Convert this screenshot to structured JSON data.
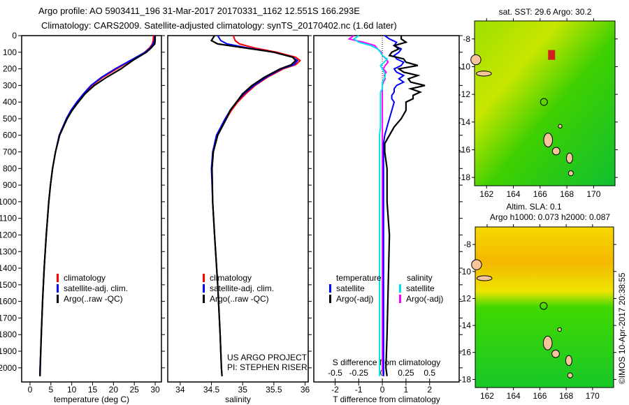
{
  "header": {
    "line1": "Argo profile: AO 5903411_196 31-Mar-2017 20170331_1162 12.551S 166.293E",
    "line2": "Climatology: CARS2009. Satellite-adjusted climatology: synTS_20170402.nc (1.6d later)"
  },
  "depth_ticks": [
    0,
    100,
    200,
    300,
    400,
    500,
    600,
    700,
    800,
    900,
    1000,
    1100,
    1200,
    1300,
    1400,
    1500,
    1600,
    1700,
    1800,
    1900,
    2000
  ],
  "colors": {
    "clim": "#ff0000",
    "sat": "#0000ff",
    "argo": "#000000",
    "sal_sat": "#00e5ee",
    "sal_argo": "#ff00ff"
  },
  "chart_data": [
    {
      "type": "line",
      "xlabel": "temperature (deg C)",
      "xlim": [
        -2,
        31.5
      ],
      "ylim": [
        2085,
        0
      ],
      "xticks": [
        0,
        5,
        10,
        15,
        20,
        25,
        30
      ],
      "legend": [
        "climatology",
        "satellite-adj. clim.",
        "Argo(..raw -QC)"
      ],
      "depth": [
        0,
        30,
        50,
        75,
        100,
        150,
        200,
        250,
        300,
        350,
        400,
        450,
        500,
        600,
        700,
        800,
        900,
        1000,
        1200,
        1400,
        1600,
        1800,
        2000,
        2050
      ],
      "series": [
        {
          "name": "climatology",
          "values": [
            29.6,
            29.5,
            29.3,
            28.6,
            27.5,
            24.2,
            20.8,
            17.5,
            14.8,
            13.0,
            11.4,
            10.0,
            8.8,
            7.1,
            6.1,
            5.4,
            4.9,
            4.5,
            3.9,
            3.4,
            3.0,
            2.7,
            2.4,
            2.35
          ]
        },
        {
          "name": "satellite-adj. clim.",
          "values": [
            29.9,
            29.8,
            29.5,
            28.8,
            27.6,
            24.0,
            20.4,
            17.2,
            14.6,
            12.8,
            11.2,
            9.8,
            8.7,
            7.0,
            6.1,
            5.4,
            4.9,
            4.5,
            3.9,
            3.4,
            3.0,
            2.7,
            2.4,
            2.35
          ]
        },
        {
          "name": "Argo(..raw -QC)",
          "values": [
            30.0,
            30.0,
            29.9,
            29.0,
            27.9,
            24.6,
            21.8,
            18.4,
            15.4,
            13.2,
            11.6,
            10.1,
            8.9,
            7.1,
            6.1,
            5.4,
            4.9,
            4.5,
            3.9,
            3.4,
            3.0,
            2.7,
            2.45,
            2.4
          ]
        }
      ]
    },
    {
      "type": "line",
      "xlabel": "salinity",
      "xlim": [
        33.8,
        36.05
      ],
      "ylim": [
        2085,
        0
      ],
      "xticks": [
        34,
        34.5,
        35,
        35.5,
        36
      ],
      "legend": [
        "climatology",
        "satellite-adj. clim.",
        "Argo(..raw -QC)"
      ],
      "annotation": [
        "US ARGO PROJECT",
        "PI: STEPHEN RISER"
      ],
      "depth": [
        0,
        30,
        50,
        75,
        100,
        130,
        150,
        175,
        200,
        250,
        300,
        350,
        400,
        450,
        500,
        600,
        700,
        800,
        1000,
        1200,
        1500,
        1800,
        2000,
        2050
      ],
      "series": [
        {
          "name": "climatology",
          "values": [
            34.85,
            34.88,
            34.95,
            35.2,
            35.55,
            35.85,
            35.92,
            35.85,
            35.65,
            35.4,
            35.2,
            35.05,
            34.92,
            34.82,
            34.74,
            34.6,
            34.53,
            34.51,
            34.52,
            34.55,
            34.6,
            34.64,
            34.66,
            34.67
          ]
        },
        {
          "name": "satellite-adj. clim.",
          "values": [
            34.6,
            34.65,
            34.75,
            35.1,
            35.5,
            35.8,
            35.88,
            35.82,
            35.62,
            35.38,
            35.18,
            35.02,
            34.9,
            34.8,
            34.72,
            34.58,
            34.52,
            34.5,
            34.52,
            34.55,
            34.6,
            34.64,
            34.66,
            34.67
          ]
        },
        {
          "name": "Argo(..raw -QC)",
          "values": [
            34.55,
            34.5,
            34.6,
            35.05,
            35.5,
            35.8,
            35.85,
            35.78,
            35.6,
            35.35,
            35.15,
            35.0,
            34.9,
            34.8,
            34.74,
            34.6,
            34.53,
            34.51,
            34.52,
            34.55,
            34.6,
            34.64,
            34.66,
            34.67
          ]
        }
      ]
    },
    {
      "type": "line",
      "xlabel": "T difference from climatology",
      "xlabel2": "S difference from climatology",
      "xlim": [
        -2.9,
        3.25
      ],
      "ylim": [
        2085,
        0
      ],
      "xticks": [
        -2,
        -1,
        0,
        1,
        2
      ],
      "xticks2": [
        "-0.5",
        "-0.25",
        "0",
        "0.25",
        "0.5"
      ],
      "legend": {
        "temperature": "temperature",
        "salinity": "salinity",
        "items": [
          "satellite",
          "Argo(-adj)",
          "satellite",
          "Argo(-adj)"
        ]
      },
      "depth": [
        0,
        20,
        40,
        60,
        80,
        100,
        120,
        140,
        160,
        180,
        200,
        220,
        240,
        260,
        280,
        300,
        320,
        340,
        360,
        380,
        400,
        450,
        500,
        550,
        600,
        650,
        700,
        800,
        1000,
        1200,
        1500,
        1800,
        2000,
        2050
      ],
      "series": [
        {
          "name": "T satellite",
          "values": [
            0.1,
            0.3,
            0.6,
            0.5,
            0.8,
            0.7,
            0.5,
            0.6,
            0.9,
            0.8,
            0.5,
            0.6,
            0.9,
            0.7,
            0.9,
            0.6,
            0.5,
            0.5,
            0.4,
            0.4,
            0.5,
            0.4,
            0.3,
            0.2,
            0.1,
            0.05,
            0.05,
            0.05,
            0.05,
            0.05,
            0.05,
            0.05,
            0.05,
            0.05
          ]
        },
        {
          "name": "T Argo(-adj)",
          "values": [
            0.8,
            0.8,
            1.0,
            0.5,
            0.7,
            0.4,
            0.3,
            0.9,
            1.0,
            1.5,
            0.7,
            0.9,
            1.5,
            1.1,
            1.2,
            1.8,
            1.2,
            1.6,
            1.3,
            1.3,
            1.0,
            1.0,
            0.8,
            0.5,
            0.3,
            0.1,
            0.1,
            0.2,
            0.2,
            0.3,
            0.25,
            0.2,
            0.15,
            0.2
          ]
        },
        {
          "name": "S satellite",
          "values": [
            -0.25,
            -0.3,
            -0.25,
            -0.12,
            -0.05,
            -0.02,
            0.0,
            0.05,
            0.02,
            -0.02,
            0.0,
            0.02,
            0.03,
            0.02,
            0.0,
            0.0,
            0.0,
            -0.02,
            -0.02,
            -0.02,
            -0.02,
            -0.02,
            -0.02,
            -0.02,
            -0.03,
            -0.03,
            -0.03,
            -0.03,
            -0.03,
            -0.03,
            -0.03,
            -0.03,
            -0.03,
            -0.03
          ]
        },
        {
          "name": "S Argo(-adj)",
          "values": [
            -0.3,
            -0.35,
            -0.2,
            -0.08,
            -0.05,
            -0.01,
            0.0,
            0.04,
            0.06,
            0.03,
            0.01,
            0.04,
            0.02,
            0.03,
            0.01,
            0.0,
            0.0,
            0.0,
            0.0,
            0.0,
            0.0,
            0.0,
            0.0,
            0.0,
            0.0,
            0.0,
            0.0,
            0.0,
            0.0,
            0.0,
            0.0,
            0.0,
            0.0,
            0.01
          ]
        }
      ]
    }
  ],
  "maps": [
    {
      "title1": "sat. SST: 29.6 Argo: 30.2",
      "title2": "",
      "lon_ticks": [
        "162",
        "164",
        "166",
        "168",
        "170"
      ],
      "lat_ticks": [
        "-8",
        "-10",
        "-12",
        "-14",
        "-16",
        "-18"
      ]
    },
    {
      "title1": "Altim. SLA: 0.1",
      "title2": "Argo h1000: 0.073 h2000: 0.087",
      "lon_ticks": [
        "162",
        "164",
        "166",
        "168",
        "170"
      ],
      "lat_ticks": [
        "-8",
        "-10",
        "-12",
        "-14",
        "-16",
        "-18"
      ]
    }
  ],
  "credit": "©IMOS 10-Apr-2017 20:38:55"
}
